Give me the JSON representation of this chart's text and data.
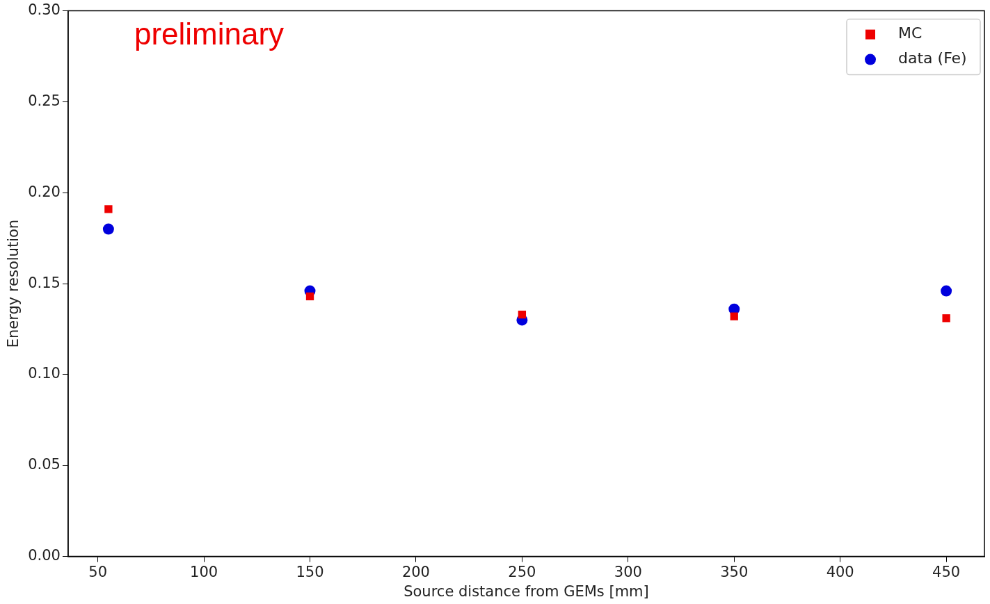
{
  "chart_data": {
    "type": "scatter",
    "xlabel": "Source distance from GEMs [mm]",
    "ylabel": "Energy resolution",
    "annotations": [
      "preliminary"
    ],
    "x": [
      55,
      150,
      250,
      350,
      450
    ],
    "series": [
      {
        "name": "MC",
        "color": "#ee0000",
        "marker": "square",
        "values": [
          0.191,
          0.143,
          0.133,
          0.132,
          0.131
        ]
      },
      {
        "name": "data (Fe)",
        "color": "#0000dd",
        "marker": "circle",
        "values": [
          0.18,
          0.146,
          0.13,
          0.136,
          0.146
        ]
      }
    ],
    "xlim": [
      36,
      468
    ],
    "xticks": [
      50,
      100,
      150,
      200,
      250,
      300,
      350,
      400,
      450
    ],
    "ylim": [
      0,
      0.3
    ],
    "yticks": [
      {
        "value": 0,
        "label": "0.00"
      },
      {
        "value": 0.05,
        "label": "0.05"
      },
      {
        "value": 0.1,
        "label": "0.10"
      },
      {
        "value": 0.15,
        "label": "0.15"
      },
      {
        "value": 0.2,
        "label": "0.20"
      },
      {
        "value": 0.25,
        "label": "0.25"
      },
      {
        "value": 0.3,
        "label": "0.30"
      }
    ],
    "grid": false,
    "legend": "top right"
  }
}
